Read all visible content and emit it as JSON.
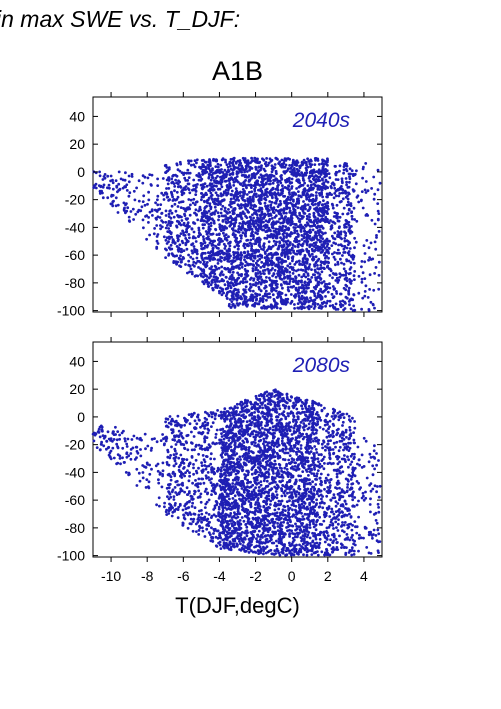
{
  "page": {
    "title": "in max SWE vs. T_DJF:",
    "scenario": "A1B",
    "xlabel": "T(DJF,degC)"
  },
  "colors": {
    "points": "#1f1fb4",
    "panel_label": "#1f1fb4",
    "axes": "#000000"
  },
  "chart_data": [
    {
      "type": "scatter",
      "title": "",
      "xlabel": "",
      "ylabel": "",
      "panel_label": "2040s",
      "xlim": [
        -11,
        5
      ],
      "ylim": [
        -101,
        54
      ],
      "xticks": [
        -10,
        -8,
        -6,
        -4,
        -2,
        0,
        2,
        4
      ],
      "yticks": [
        40,
        20,
        0,
        -20,
        -40,
        -60,
        -80,
        -100
      ],
      "show_x_tick_labels": false,
      "grid": false,
      "legend": "none",
      "point_regions": [
        {
          "x_range": [
            -11.0,
            -7.0
          ],
          "y_top_start": 2,
          "y_top_end": -3,
          "y_bottom_start": -12,
          "y_bottom_end": -62,
          "count": 160
        },
        {
          "x_range": [
            -7.0,
            -5.0
          ],
          "y_top_start": 5,
          "y_top_end": 10,
          "y_bottom_start": -62,
          "y_bottom_end": -80,
          "count": 350
        },
        {
          "x_range": [
            -5.0,
            -3.5
          ],
          "y_top_start": 10,
          "y_top_end": 10,
          "y_bottom_start": -80,
          "y_bottom_end": -92,
          "count": 550
        },
        {
          "x_range": [
            -3.5,
            2.0
          ],
          "y_top_start": 10,
          "y_top_end": 10,
          "y_bottom_start": -98,
          "y_bottom_end": -99,
          "count": 2400
        },
        {
          "x_range": [
            2.0,
            3.5
          ],
          "y_top_start": 9,
          "y_top_end": 5,
          "y_bottom_start": -99,
          "y_bottom_end": -100,
          "count": 320
        },
        {
          "x_range": [
            3.5,
            4.9
          ],
          "y_top_start": 7,
          "y_top_end": 5,
          "y_bottom_start": -100,
          "y_bottom_end": -100,
          "count": 80
        }
      ]
    },
    {
      "type": "scatter",
      "title": "",
      "xlabel": "T(DJF,degC)",
      "ylabel": "",
      "panel_label": "2080s",
      "xlim": [
        -11,
        5
      ],
      "ylim": [
        -101,
        54
      ],
      "xticks": [
        -10,
        -8,
        -6,
        -4,
        -2,
        0,
        2,
        4
      ],
      "yticks": [
        40,
        20,
        0,
        -20,
        -40,
        -60,
        -80,
        -100
      ],
      "show_x_tick_labels": true,
      "grid": false,
      "legend": "none",
      "point_regions": [
        {
          "x_range": [
            -11.0,
            -7.0
          ],
          "y_top_start": -5,
          "y_top_end": -12,
          "y_bottom_start": -20,
          "y_bottom_end": -70,
          "count": 150
        },
        {
          "x_range": [
            -7.0,
            -4.0
          ],
          "y_top_start": 0,
          "y_top_end": 5,
          "y_bottom_start": -70,
          "y_bottom_end": -95,
          "count": 500
        },
        {
          "x_range": [
            -4.0,
            -1.0
          ],
          "y_top_start": 5,
          "y_top_end": 20,
          "y_bottom_start": -95,
          "y_bottom_end": -100,
          "count": 1500
        },
        {
          "x_range": [
            -1.0,
            1.5
          ],
          "y_top_start": 20,
          "y_top_end": 10,
          "y_bottom_start": -100,
          "y_bottom_end": -100,
          "count": 1100
        },
        {
          "x_range": [
            1.5,
            3.5
          ],
          "y_top_start": 10,
          "y_top_end": 0,
          "y_bottom_start": -100,
          "y_bottom_end": -100,
          "count": 450
        },
        {
          "x_range": [
            3.5,
            4.9
          ],
          "y_top_start": -5,
          "y_top_end": -20,
          "y_bottom_start": -100,
          "y_bottom_end": -100,
          "count": 90
        }
      ]
    }
  ]
}
